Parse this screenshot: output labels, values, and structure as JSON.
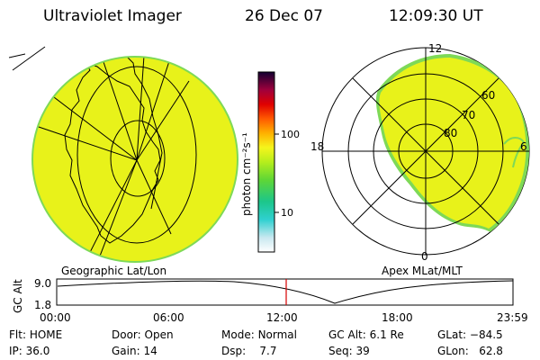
{
  "header": {
    "title": "Ultraviolet Imager",
    "date": "26 Dec 07",
    "time": "12:09:30 UT"
  },
  "panels": {
    "left_label": "Geographic Lat/Lon",
    "right_label": "Apex MLat/MLT"
  },
  "colorbar": {
    "unit_label": "photon cm⁻²s⁻¹",
    "ticks": [
      "100",
      "10"
    ]
  },
  "polar": {
    "lat_labels": [
      "60",
      "70",
      "80"
    ],
    "mlt_labels": [
      "12",
      "18",
      "6",
      "0"
    ]
  },
  "altitude_plot": {
    "ylabel": "GC Alt",
    "y_ticks": [
      "9.0",
      "1.8"
    ],
    "x_ticks": [
      "00:00",
      "06:00",
      "12:00",
      "18:00",
      "23:59"
    ],
    "current_time_color": "#d40000"
  },
  "footer": {
    "row1": [
      {
        "label": "Flt:",
        "value": "HOME"
      },
      {
        "label": "Door:",
        "value": "Open"
      },
      {
        "label": "Mode:",
        "value": "Normal"
      },
      {
        "label": "GC Alt:",
        "value": "6.1 Re"
      },
      {
        "label": "GLat:",
        "value": "−84.5"
      }
    ],
    "row2": [
      {
        "label": "IP:",
        "value": "36.0"
      },
      {
        "label": "Gain:",
        "value": "14"
      },
      {
        "label": "Dsp:",
        "value": "7.7"
      },
      {
        "label": "Seq:",
        "value": "39"
      },
      {
        "label": "GLon:",
        "value": "62.8"
      }
    ]
  },
  "colors": {
    "emission": "#e8f21a",
    "edge": "#7ed957",
    "grid": "#000000"
  }
}
